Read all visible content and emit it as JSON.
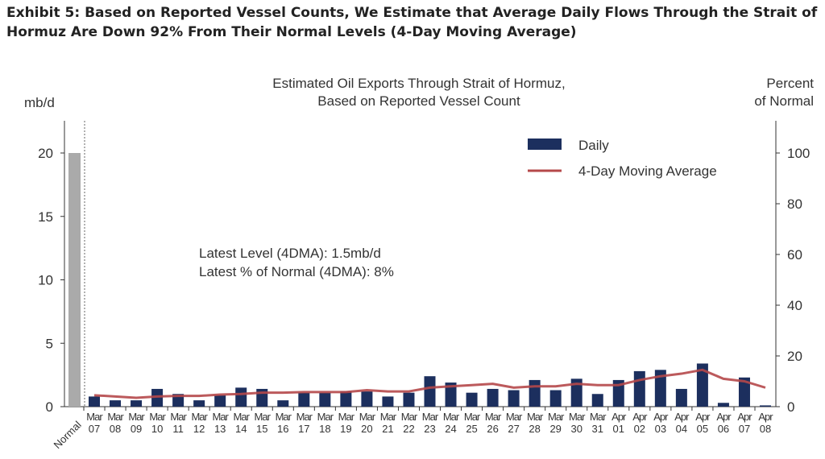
{
  "exhibit_title": "Exhibit 5: Based on Reported Vessel Counts, We Estimate that Average Daily Flows Through the Strait of Hormuz Are Down 92% From Their Normal Levels (4-Day Moving Average)",
  "chart_data": {
    "type": "bar",
    "title": [
      "Estimated Oil Exports Through Strait of Hormuz,",
      "Based on Reported Vessel Count"
    ],
    "ylabel_left": "mb/d",
    "ylabel_right": [
      "Percent",
      "of Normal"
    ],
    "ylim_left": [
      0,
      22.5
    ],
    "yticks_left": [
      0,
      5,
      10,
      15,
      20
    ],
    "ylim_right": [
      0,
      112.5
    ],
    "yticks_right": [
      0,
      20,
      40,
      60,
      80,
      100
    ],
    "normal": {
      "label": "Normal",
      "value": 20,
      "color": "#aaaaaa"
    },
    "categories": [
      [
        "Mar",
        "07"
      ],
      [
        "Mar",
        "08"
      ],
      [
        "Mar",
        "09"
      ],
      [
        "Mar",
        "10"
      ],
      [
        "Mar",
        "11"
      ],
      [
        "Mar",
        "12"
      ],
      [
        "Mar",
        "13"
      ],
      [
        "Mar",
        "14"
      ],
      [
        "Mar",
        "15"
      ],
      [
        "Mar",
        "16"
      ],
      [
        "Mar",
        "17"
      ],
      [
        "Mar",
        "18"
      ],
      [
        "Mar",
        "19"
      ],
      [
        "Mar",
        "20"
      ],
      [
        "Mar",
        "21"
      ],
      [
        "Mar",
        "22"
      ],
      [
        "Mar",
        "23"
      ],
      [
        "Mar",
        "24"
      ],
      [
        "Mar",
        "25"
      ],
      [
        "Mar",
        "26"
      ],
      [
        "Mar",
        "27"
      ],
      [
        "Mar",
        "28"
      ],
      [
        "Mar",
        "29"
      ],
      [
        "Mar",
        "30"
      ],
      [
        "Mar",
        "31"
      ],
      [
        "Apr",
        "01"
      ],
      [
        "Apr",
        "02"
      ],
      [
        "Apr",
        "03"
      ],
      [
        "Apr",
        "04"
      ],
      [
        "Apr",
        "05"
      ],
      [
        "Apr",
        "06"
      ],
      [
        "Apr",
        "07"
      ],
      [
        "Apr",
        "08"
      ]
    ],
    "series": [
      {
        "name": "Daily",
        "type": "bar",
        "color": "#1c2f5e",
        "values": [
          0.8,
          0.5,
          0.5,
          1.4,
          1.0,
          0.5,
          0.9,
          1.5,
          1.4,
          0.5,
          1.1,
          1.1,
          1.2,
          1.2,
          0.8,
          1.1,
          2.4,
          1.9,
          1.1,
          1.4,
          1.3,
          2.1,
          1.3,
          2.2,
          1.0,
          2.1,
          2.8,
          2.9,
          1.4,
          3.4,
          0.3,
          2.3,
          0.1
        ]
      },
      {
        "name": "4-Day Moving Average",
        "type": "line",
        "color": "#b5484a",
        "values": [
          0.9,
          0.8,
          0.7,
          0.8,
          0.85,
          0.85,
          0.95,
          1.0,
          1.1,
          1.1,
          1.15,
          1.15,
          1.15,
          1.3,
          1.2,
          1.2,
          1.5,
          1.6,
          1.7,
          1.8,
          1.5,
          1.6,
          1.6,
          1.8,
          1.7,
          1.7,
          2.1,
          2.4,
          2.6,
          2.9,
          2.2,
          2.0,
          1.5
        ]
      }
    ],
    "annotations": [
      "Latest Level (4DMA): 1.5mb/d",
      "Latest % of Normal (4DMA): 8%"
    ],
    "legend_position": "top-right",
    "grid": false
  }
}
